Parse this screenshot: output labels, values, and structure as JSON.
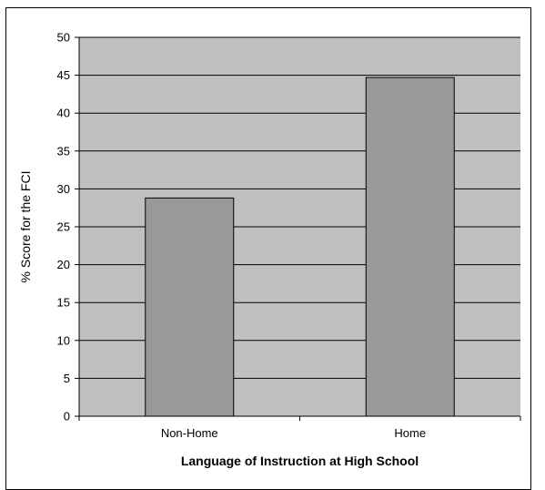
{
  "chart_data": {
    "type": "bar",
    "categories": [
      "Non-Home",
      "Home"
    ],
    "values": [
      28.8,
      44.7
    ],
    "xlabel": "Language of Instruction at High School",
    "ylabel": "% Score for the FCI",
    "ylim": [
      0,
      50
    ],
    "yticks": [
      0,
      5,
      10,
      15,
      20,
      25,
      30,
      35,
      40,
      45,
      50
    ],
    "grid": true,
    "legend": "none",
    "colors": {
      "plot_background": "#c0c0c0",
      "bar_fill": "#999999",
      "bar_stroke": "#000000",
      "gridline": "#000000"
    }
  }
}
